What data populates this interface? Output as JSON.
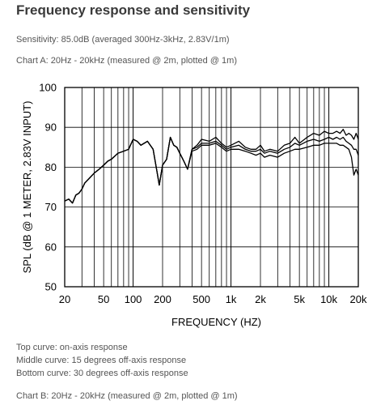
{
  "header": {
    "title": "Frequency response and sensitivity",
    "sensitivity": "Sensitivity: 85.0dB (averaged 300Hz-3kHz, 2.83V/1m)",
    "chart_a_caption": "Chart A: 20Hz - 20kHz (measured @ 2m, plotted @ 1m)"
  },
  "legend": {
    "top": "Top curve: on-axis response",
    "middle": "Middle curve: 15 degrees off-axis response",
    "bottom": "Bottom curve: 30 degrees off-axis response"
  },
  "footer": {
    "chart_b_caption": "Chart B: 20Hz - 20kHz (measured @ 2m, plotted @ 1m)"
  },
  "colors": {
    "curve": "#000000",
    "grid": "#000000"
  },
  "chart_data": {
    "type": "line",
    "xlabel": "FREQUENCY  (HZ)",
    "ylabel": "SPL (dB @ 1 METER, 2.83V INPUT)",
    "xscale": "log",
    "xlim": [
      20,
      20000
    ],
    "ylim": [
      50,
      100
    ],
    "grid": true,
    "x_ticks": [
      {
        "value": 20,
        "label": "20"
      },
      {
        "value": 50,
        "label": "50"
      },
      {
        "value": 100,
        "label": "100"
      },
      {
        "value": 200,
        "label": "200"
      },
      {
        "value": 500,
        "label": "500"
      },
      {
        "value": 1000,
        "label": "1k"
      },
      {
        "value": 2000,
        "label": "2k"
      },
      {
        "value": 5000,
        "label": "5k"
      },
      {
        "value": 10000,
        "label": "10k"
      },
      {
        "value": 20000,
        "label": "20k"
      }
    ],
    "y_ticks": [
      {
        "value": 50,
        "label": "50"
      },
      {
        "value": 60,
        "label": "60"
      },
      {
        "value": 70,
        "label": "70"
      },
      {
        "value": 80,
        "label": "80"
      },
      {
        "value": 90,
        "label": "90"
      },
      {
        "value": 100,
        "label": "100"
      }
    ],
    "x": [
      20,
      22,
      24,
      26,
      28,
      30,
      32,
      35,
      40,
      45,
      50,
      55,
      60,
      70,
      80,
      90,
      100,
      110,
      120,
      140,
      160,
      175,
      185,
      200,
      220,
      240,
      260,
      280,
      300,
      330,
      360,
      400,
      450,
      500,
      600,
      700,
      800,
      900,
      1000,
      1200,
      1400,
      1600,
      1800,
      2000,
      2200,
      2500,
      3000,
      3500,
      4000,
      4500,
      5000,
      6000,
      7000,
      8000,
      9000,
      10000,
      11000,
      12000,
      13000,
      14000,
      15000,
      16000,
      17000,
      18000,
      19000,
      20000
    ],
    "series": [
      {
        "values": [
          71.5,
          72,
          71,
          73,
          73.5,
          74.5,
          76,
          77,
          78.5,
          79.5,
          80.5,
          81.5,
          82,
          83.5,
          84,
          84.5,
          87,
          86.5,
          85.5,
          86.5,
          84.5,
          79,
          75.5,
          80.5,
          82,
          87.5,
          85.5,
          85,
          83.5,
          81.5,
          79.5,
          84.5,
          85.5,
          87,
          86.5,
          87.5,
          86,
          85,
          85.5,
          86.5,
          85,
          84.5,
          84.5,
          85.5,
          84,
          84.5,
          84,
          85.5,
          86,
          87.5,
          86,
          87.5,
          88.5,
          88,
          89,
          88.5,
          88.5,
          89,
          88.5,
          89.5,
          88,
          88.5,
          88,
          87,
          88.5,
          87
        ]
      },
      {
        "values": [
          71.5,
          72,
          71,
          73,
          73.5,
          74.5,
          76,
          77,
          78.5,
          79.5,
          80.5,
          81.5,
          82,
          83.5,
          84,
          84.5,
          87,
          86.5,
          85.5,
          86.5,
          84.5,
          79,
          75.5,
          80.5,
          82,
          87.5,
          85.5,
          85,
          83.5,
          81.5,
          79.5,
          84.5,
          85,
          86,
          86,
          86.5,
          85.5,
          84.5,
          85,
          85.5,
          84.5,
          84,
          84,
          84.5,
          83.5,
          84,
          83.5,
          84.5,
          85,
          86,
          85.5,
          86.5,
          87,
          86.5,
          87,
          87.5,
          87,
          87.5,
          87,
          87.5,
          86.5,
          86,
          85.5,
          84.5,
          84.5,
          83
        ]
      },
      {
        "values": [
          71.5,
          72,
          71,
          73,
          73.5,
          74.5,
          76,
          77,
          78.5,
          79.5,
          80.5,
          81.5,
          82,
          83.5,
          84,
          84.5,
          87,
          86.5,
          85.5,
          86.5,
          84.5,
          79,
          75.5,
          80.5,
          82,
          87.5,
          85.5,
          85,
          83.5,
          81.5,
          79.5,
          84,
          84.5,
          85.5,
          85.5,
          86,
          85,
          84,
          84.5,
          84.5,
          84,
          83.5,
          83,
          83.5,
          82.5,
          83,
          82.5,
          83.5,
          84,
          84.5,
          84.5,
          85,
          85.5,
          85.5,
          86,
          86,
          86,
          86,
          85.5,
          85.5,
          85,
          84.5,
          82.5,
          78,
          79.5,
          78
        ]
      }
    ]
  }
}
